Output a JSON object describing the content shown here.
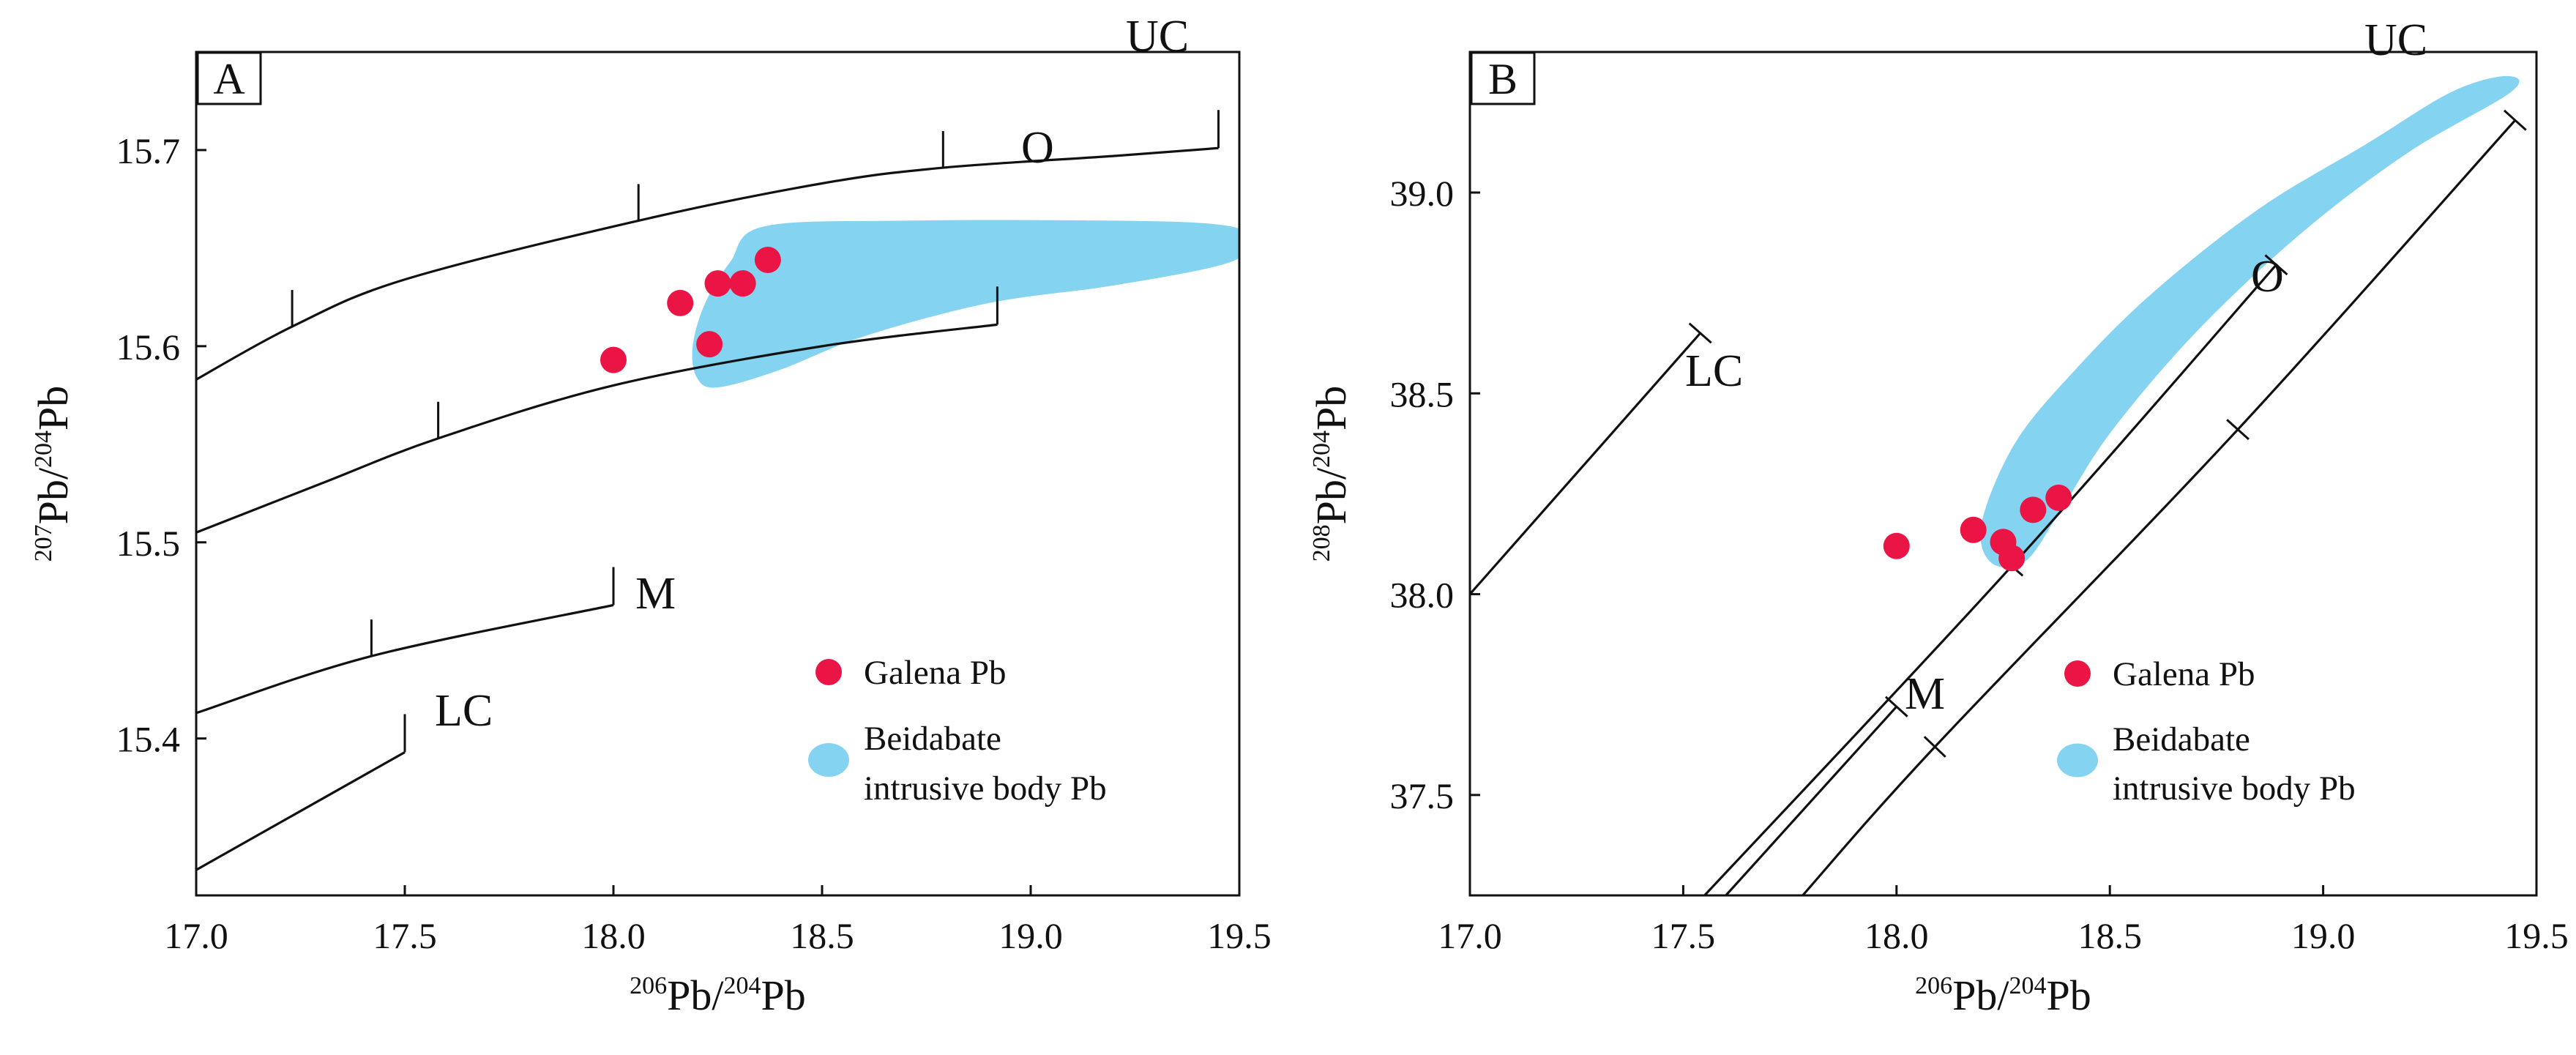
{
  "chart_data": [
    {
      "panel": "A",
      "type": "scatter",
      "xlim": [
        17.0,
        19.5
      ],
      "ylim": [
        15.32,
        15.75
      ],
      "x_ticks": [
        17.0,
        17.5,
        18.0,
        18.5,
        19.0,
        19.5
      ],
      "y_ticks": [
        15.4,
        15.5,
        15.6,
        15.7
      ],
      "x_tick_labels": [
        "17.0",
        "17.5",
        "18.0",
        "18.5",
        "19.0",
        "19.5"
      ],
      "y_tick_labels": [
        "15.4",
        "15.5",
        "15.6",
        "15.7"
      ],
      "xlabel": {
        "sup": "206",
        "base1": "Pb/",
        "sup2": "204",
        "base2": "Pb"
      },
      "ylabel": {
        "sup": "207",
        "base1": "Pb/",
        "sup2": "204",
        "base2": "Pb"
      },
      "curves": [
        {
          "name": "UC",
          "x": [
            17.0,
            17.23,
            17.5,
            18.06,
            18.5,
            18.79,
            19.2,
            19.45
          ],
          "y": [
            15.583,
            15.61,
            15.634,
            15.664,
            15.683,
            15.691,
            15.697,
            15.701
          ],
          "ticks_x": [
            17.23,
            18.06,
            18.79
          ],
          "end_x": 19.45,
          "end_y": 15.701
        },
        {
          "name": "O",
          "x": [
            17.0,
            17.3,
            17.58,
            18.0,
            18.5,
            18.92
          ],
          "y": [
            15.505,
            15.53,
            15.553,
            15.58,
            15.6,
            15.611
          ],
          "ticks_x": [
            17.58
          ],
          "end_x": 18.92,
          "end_y": 15.611
        },
        {
          "name": "M",
          "x": [
            17.0,
            17.42,
            18.0
          ],
          "y": [
            15.413,
            15.442,
            15.468
          ],
          "ticks_x": [
            17.42
          ],
          "end_x": 18.0,
          "end_y": 15.468
        },
        {
          "name": "LC",
          "x": [
            17.0,
            17.5
          ],
          "y": [
            15.333,
            15.393
          ],
          "ticks_x": [],
          "end_x": 17.5,
          "end_y": 15.393
        }
      ],
      "field": {
        "name": "Beidabate intrusive body Pb",
        "color": "#84d3f1",
        "outline": [
          [
            18.36,
            15.661
          ],
          [
            18.7,
            15.664
          ],
          [
            19.2,
            15.664
          ],
          [
            19.45,
            15.662
          ],
          [
            19.52,
            15.656
          ],
          [
            19.48,
            15.643
          ],
          [
            19.2,
            15.631
          ],
          [
            18.9,
            15.622
          ],
          [
            18.6,
            15.605
          ],
          [
            18.4,
            15.588
          ],
          [
            18.25,
            15.579
          ],
          [
            18.2,
            15.584
          ],
          [
            18.19,
            15.6
          ],
          [
            18.22,
            15.622
          ],
          [
            18.28,
            15.643
          ]
        ]
      },
      "series": [
        {
          "name": "Galena Pb",
          "color": "#eb1545",
          "points": [
            [
              18.0,
              15.593
            ],
            [
              18.16,
              15.622
            ],
            [
              18.25,
              15.632
            ],
            [
              18.31,
              15.632
            ],
            [
              18.37,
              15.644
            ],
            [
              18.23,
              15.601
            ]
          ]
        }
      ],
      "legend": {
        "items": [
          "Galena Pb",
          "Beidabate",
          "intrusive body Pb"
        ],
        "position": "bottom-right"
      },
      "labels": [
        "UC",
        "O",
        "M",
        "LC"
      ]
    },
    {
      "panel": "B",
      "type": "scatter",
      "xlim": [
        17.0,
        19.5
      ],
      "ylim": [
        37.25,
        39.35
      ],
      "x_ticks": [
        17.0,
        17.5,
        18.0,
        18.5,
        19.0,
        19.5
      ],
      "y_ticks": [
        37.5,
        38.0,
        38.5,
        39.0
      ],
      "x_tick_labels": [
        "17.0",
        "17.5",
        "18.0",
        "18.5",
        "19.0",
        "19.5"
      ],
      "y_tick_labels": [
        "37.5",
        "38.0",
        "38.5",
        "39.0"
      ],
      "xlabel": {
        "sup": "206",
        "base1": "Pb/",
        "sup2": "204",
        "base2": "Pb"
      },
      "ylabel": {
        "sup": "208",
        "base1": "Pb/",
        "sup2": "204",
        "base2": "Pb"
      },
      "curves": [
        {
          "name": "LC",
          "x": [
            17.0,
            17.54
          ],
          "y": [
            38.0,
            38.65
          ],
          "ticks_x": [],
          "end_x": 17.54,
          "end_y": 38.65
        },
        {
          "name": "O",
          "x": [
            17.55,
            18.27,
            18.89
          ],
          "y": [
            37.25,
            38.07,
            38.82
          ],
          "ticks_x": [
            18.27
          ],
          "end_x": 18.89,
          "end_y": 38.82
        },
        {
          "name": "M",
          "x": [
            17.6,
            18.0
          ],
          "y": [
            37.25,
            37.72
          ],
          "ticks_x": [],
          "end_x": 18.0,
          "end_y": 37.72
        },
        {
          "name": "UC",
          "x": [
            17.78,
            18.09,
            18.8,
            19.45
          ],
          "y": [
            37.25,
            37.62,
            38.41,
            39.18
          ],
          "ticks_x": [
            18.09,
            18.8
          ],
          "end_x": 19.45,
          "end_y": 39.18
        }
      ],
      "field": {
        "name": "Beidabate intrusive body Pb",
        "color": "#84d3f1",
        "outline": [
          [
            19.43,
            39.29
          ],
          [
            19.44,
            39.25
          ],
          [
            19.2,
            39.1
          ],
          [
            18.95,
            38.9
          ],
          [
            18.7,
            38.65
          ],
          [
            18.5,
            38.4
          ],
          [
            18.38,
            38.2
          ],
          [
            18.3,
            38.08
          ],
          [
            18.22,
            38.08
          ],
          [
            18.2,
            38.18
          ],
          [
            18.28,
            38.38
          ],
          [
            18.42,
            38.56
          ],
          [
            18.6,
            38.75
          ],
          [
            18.85,
            38.96
          ],
          [
            19.1,
            39.12
          ],
          [
            19.3,
            39.25
          ]
        ]
      },
      "series": [
        {
          "name": "Galena Pb",
          "color": "#eb1545",
          "points": [
            [
              18.0,
              38.12
            ],
            [
              18.18,
              38.16
            ],
            [
              18.25,
              38.13
            ],
            [
              18.27,
              38.09
            ],
            [
              18.32,
              38.21
            ],
            [
              18.38,
              38.24
            ]
          ]
        }
      ],
      "legend": {
        "items": [
          "Galena Pb",
          "Beidabate",
          "intrusive body Pb"
        ],
        "position": "bottom-right"
      },
      "labels": [
        "UC",
        "O",
        "M",
        "LC"
      ]
    }
  ]
}
